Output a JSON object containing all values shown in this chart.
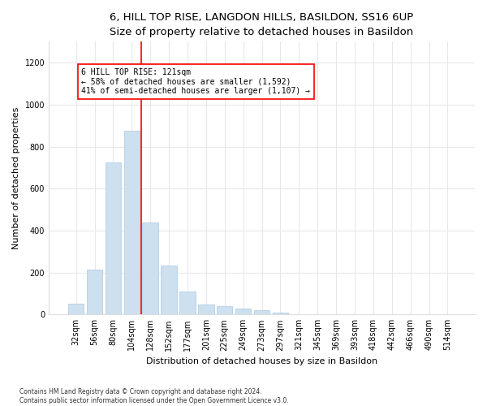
{
  "title": "6, HILL TOP RISE, LANGDON HILLS, BASILDON, SS16 6UP",
  "subtitle": "Size of property relative to detached houses in Basildon",
  "xlabel": "Distribution of detached houses by size in Basildon",
  "ylabel": "Number of detached properties",
  "footnote": "Contains HM Land Registry data © Crown copyright and database right 2024.\nContains public sector information licensed under the Open Government Licence v3.0.",
  "bar_labels": [
    "32sqm",
    "56sqm",
    "80sqm",
    "104sqm",
    "128sqm",
    "152sqm",
    "177sqm",
    "201sqm",
    "225sqm",
    "249sqm",
    "273sqm",
    "297sqm",
    "321sqm",
    "345sqm",
    "369sqm",
    "393sqm",
    "418sqm",
    "442sqm",
    "466sqm",
    "490sqm",
    "514sqm"
  ],
  "bar_values": [
    50,
    215,
    725,
    875,
    440,
    235,
    110,
    48,
    40,
    30,
    20,
    10,
    0,
    0,
    0,
    0,
    0,
    0,
    0,
    0,
    0
  ],
  "bar_color": "#cce0f0",
  "bar_edgecolor": "#aac8e0",
  "vline_color": "red",
  "vline_x": 3.5,
  "annotation_text": "6 HILL TOP RISE: 121sqm\n← 58% of detached houses are smaller (1,592)\n41% of semi-detached houses are larger (1,107) →",
  "annotation_box_color": "red",
  "ylim": [
    0,
    1300
  ],
  "yticks": [
    0,
    200,
    400,
    600,
    800,
    1000,
    1200
  ],
  "bg_color": "#ffffff",
  "plot_bg_color": "#ffffff",
  "grid_color": "#e8e8e8",
  "title_fontsize": 9.5,
  "tick_fontsize": 7,
  "ylabel_fontsize": 8,
  "xlabel_fontsize": 8,
  "annotation_fontsize": 7,
  "footnote_fontsize": 5.5
}
